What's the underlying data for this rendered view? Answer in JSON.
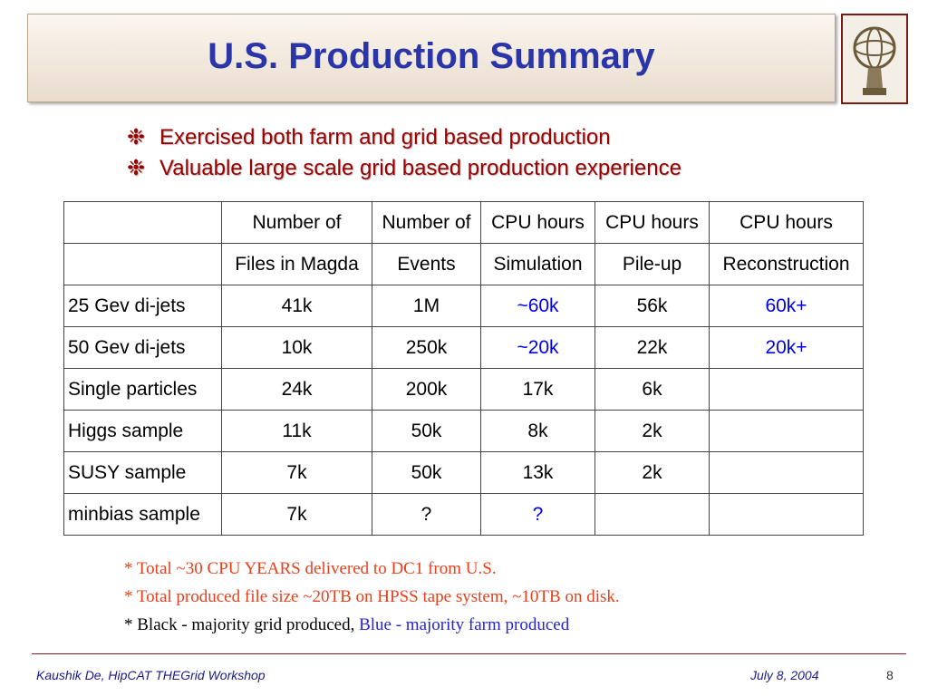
{
  "title": "U.S. Production Summary",
  "bullets": [
    "Exercised both farm and grid based production",
    "Valuable large scale grid based production experience"
  ],
  "table": {
    "header": [
      [
        "Number of",
        "Number of",
        "CPU hours",
        "CPU hours",
        "CPU hours"
      ],
      [
        "Files in Magda",
        "Events",
        "Simulation",
        "Pile-up",
        "Reconstruction"
      ]
    ],
    "rows": [
      {
        "label": "25 Gev di-jets",
        "cells": [
          "41k",
          "1M",
          {
            "text": "~60k",
            "color": "#0000ee"
          },
          "56k",
          {
            "text": "60k+",
            "color": "#0000ee"
          }
        ]
      },
      {
        "label": "50 Gev di-jets",
        "cells": [
          "10k",
          "250k",
          {
            "text": "~20k",
            "color": "#0000ee"
          },
          "22k",
          {
            "text": "20k+",
            "color": "#0000ee"
          }
        ]
      },
      {
        "label": "Single particles",
        "cells": [
          "24k",
          "200k",
          "17k",
          "6k"
        ]
      },
      {
        "label": "Higgs sample",
        "cells": [
          "11k",
          "50k",
          "8k",
          "2k"
        ]
      },
      {
        "label": "SUSY sample",
        "cells": [
          "7k",
          "50k",
          "13k",
          "2k"
        ]
      },
      {
        "label": "minbias sample",
        "cells": [
          "7k",
          "?",
          {
            "text": "?",
            "color": "#0000ee"
          }
        ]
      }
    ]
  },
  "notes": [
    [
      {
        "text": "* Total ~30 CPU YEARS delivered to DC1 from U.S.",
        "color": "#e8401c"
      }
    ],
    [
      {
        "text": "* Total produced file size ~20TB on HPSS tape system, ~10TB on disk.",
        "color": "#e8401c"
      }
    ],
    [
      {
        "text": "* Black - majority grid produced, ",
        "color": "#000000"
      },
      {
        "text": "Blue - majority farm produced",
        "color": "#2222dd"
      }
    ]
  ],
  "footer": {
    "author": "Kaushik De, HipCAT THEGrid Workshop",
    "date": "July 8, 2004",
    "page": "8"
  }
}
